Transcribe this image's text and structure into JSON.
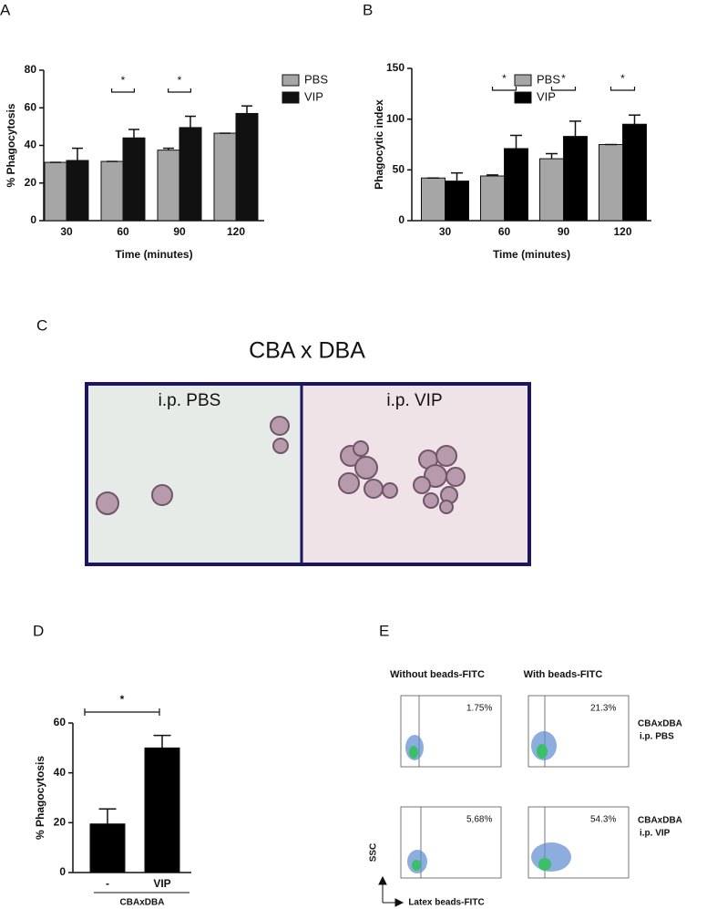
{
  "chart_data": [
    {
      "type": "bar",
      "panel": "A",
      "xlabel": "Time (minutes)",
      "ylabel": "% Phagocytosis",
      "categories": [
        "30",
        "60",
        "90",
        "120"
      ],
      "series": [
        {
          "name": "PBS",
          "color": "#a6a6a6",
          "values": [
            31,
            31.5,
            37.5,
            46.5
          ],
          "errors": [
            0,
            0,
            1,
            0
          ]
        },
        {
          "name": "VIP",
          "color": "#111111",
          "values": [
            32,
            44,
            49.5,
            57
          ],
          "errors": [
            6.5,
            4.5,
            6,
            4
          ]
        }
      ],
      "annotations": [
        null,
        "*",
        "*",
        null
      ],
      "ylim": [
        0,
        80
      ],
      "yticks": [
        0,
        20,
        40,
        60,
        80
      ],
      "legend": "right"
    },
    {
      "type": "bar",
      "panel": "B",
      "xlabel": "Time (minutes)",
      "ylabel": "Phagocytic index",
      "categories": [
        "30",
        "60",
        "90",
        "120"
      ],
      "series": [
        {
          "name": "PBS",
          "color": "#a6a6a6",
          "values": [
            42,
            44,
            61,
            75
          ],
          "errors": [
            0,
            1,
            5,
            0
          ]
        },
        {
          "name": "VIP",
          "color": "#000000",
          "values": [
            39,
            71,
            83,
            95
          ],
          "errors": [
            8,
            13,
            15,
            9
          ]
        }
      ],
      "annotations": [
        null,
        "*",
        "*",
        "*"
      ],
      "ylim": [
        0,
        150
      ],
      "yticks": [
        0,
        50,
        100,
        150
      ],
      "legend": "right"
    },
    {
      "type": "bar",
      "panel": "D",
      "ylabel": "% Phagocytosis",
      "categories": [
        "-",
        "VIP"
      ],
      "values": [
        19.5,
        50
      ],
      "errors": [
        6,
        5
      ],
      "color": "#000000",
      "group_label": "CBAxDBA",
      "bracket": "*",
      "ylim": [
        0,
        60
      ],
      "yticks": [
        0,
        20,
        40,
        60
      ]
    }
  ],
  "micrograph": {
    "panel": "C",
    "title": "CBA x DBA",
    "left": "i.p. PBS",
    "right": "i.p. VIP"
  },
  "flow": {
    "panel": "E",
    "columns": [
      "Without beads-FITC",
      "With beads-FITC"
    ],
    "rows": [
      [
        "CBAxDBA",
        "i.p. PBS"
      ],
      [
        "CBAxDBA",
        "i.p. VIP"
      ]
    ],
    "gates": [
      [
        "1.75%",
        "21.3%"
      ],
      [
        "5,68%",
        "54.3%"
      ]
    ],
    "yaxis": "SSC",
    "xaxis": "Latex beads-FITC"
  }
}
